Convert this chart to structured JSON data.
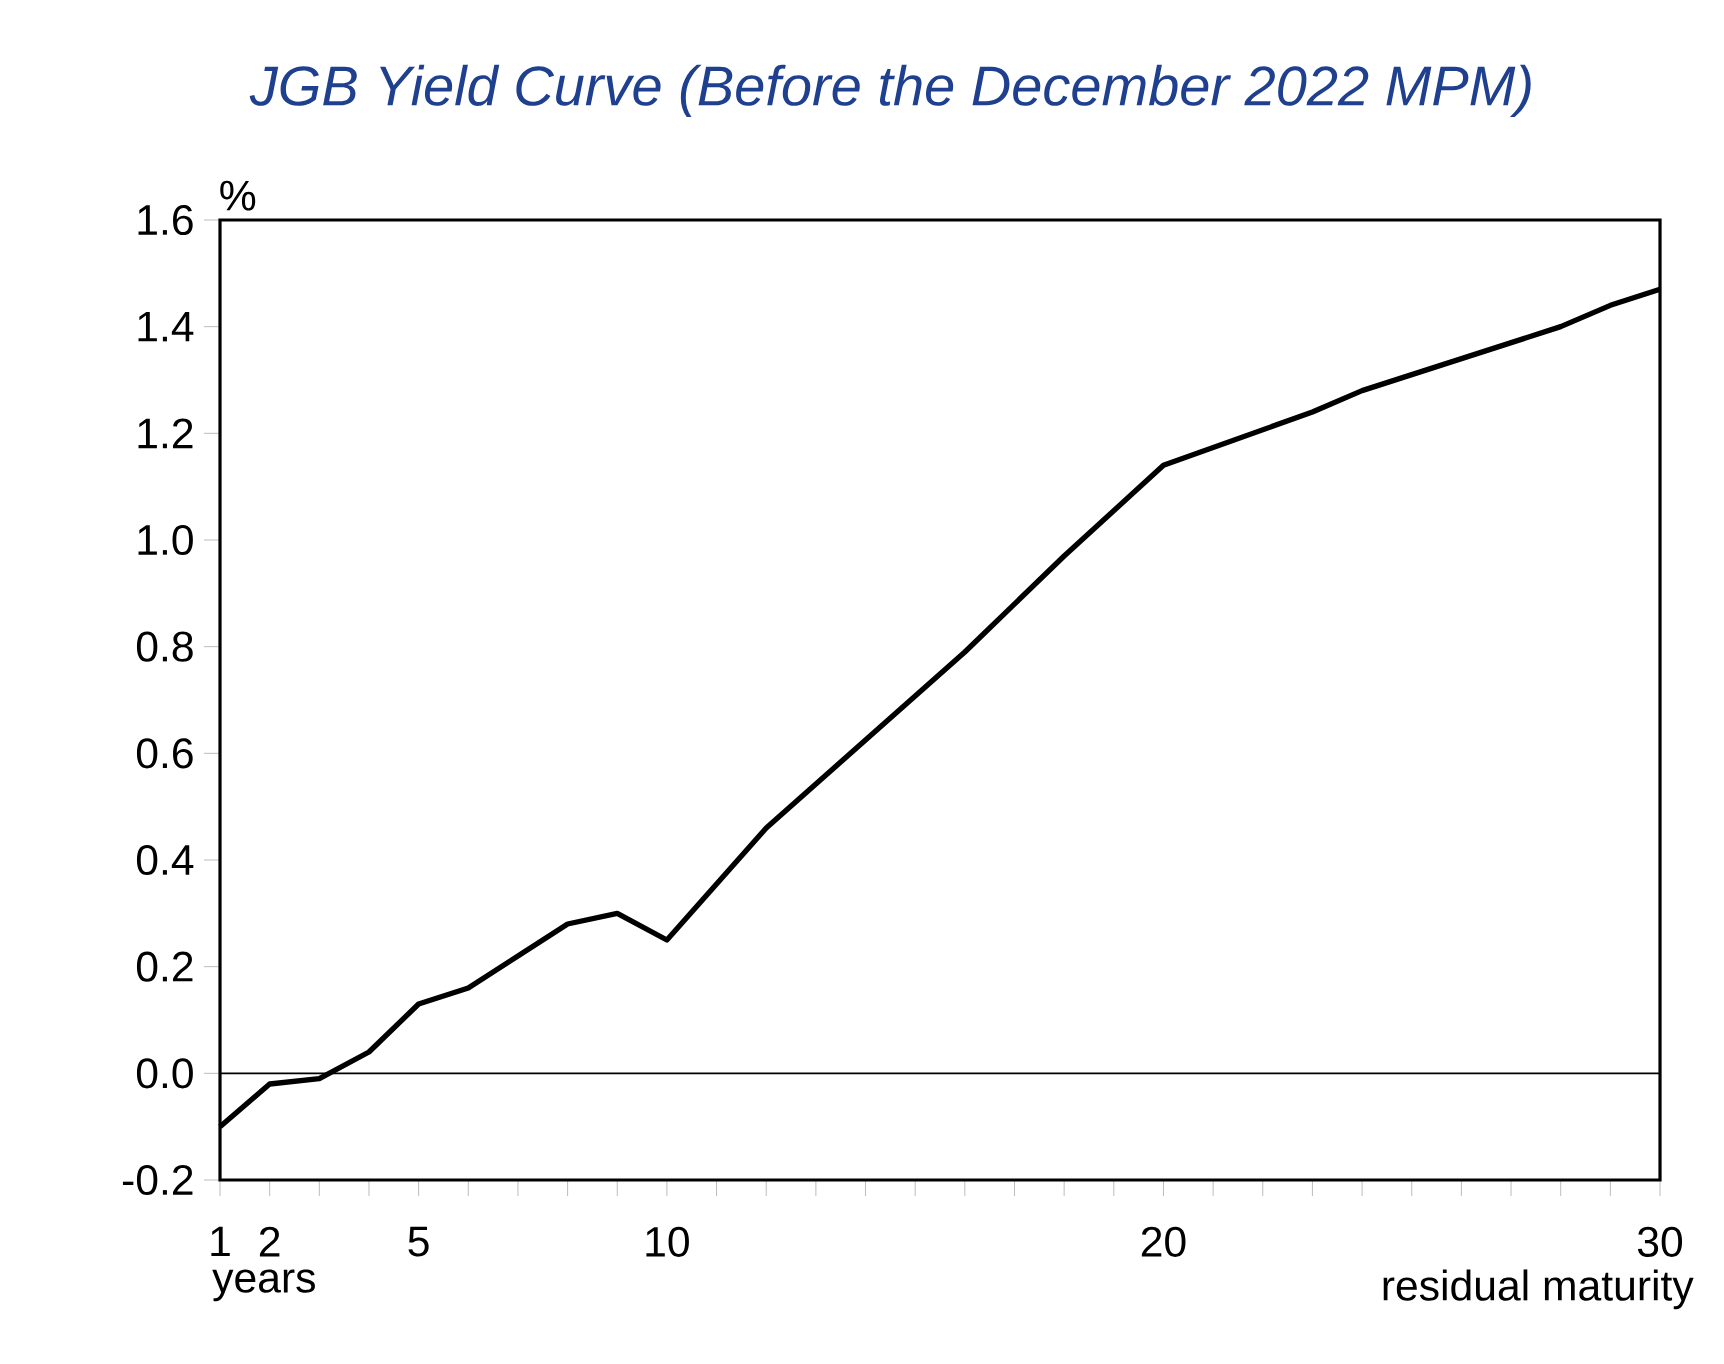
{
  "chart_data": {
    "type": "line",
    "title": "JGB Yield Curve (Before the December 2022 MPM)",
    "xlabel": "residual maturity",
    "ylabel": "%",
    "annotations": [
      "years"
    ],
    "series": [
      {
        "color": "#000000",
        "x": [
          1,
          2,
          3,
          4,
          5,
          6,
          7,
          8,
          9,
          10,
          12,
          16,
          18,
          20,
          23,
          24,
          28,
          29,
          30
        ],
        "values": [
          -0.1,
          -0.02,
          -0.01,
          0.04,
          0.13,
          0.16,
          0.22,
          0.28,
          0.3,
          0.25,
          0.46,
          0.79,
          0.97,
          1.14,
          1.24,
          1.28,
          1.4,
          1.44,
          1.47
        ]
      }
    ],
    "xlim": [
      1,
      30
    ],
    "xticks": [
      1,
      2,
      {
        "value": 3,
        "label": null
      },
      {
        "value": 4,
        "label": null
      },
      5,
      {
        "value": 6,
        "label": null
      },
      {
        "value": 7,
        "label": null
      },
      {
        "value": 8,
        "label": null
      },
      {
        "value": 9,
        "label": null
      },
      10,
      {
        "value": 11,
        "label": null
      },
      {
        "value": 12,
        "label": null
      },
      {
        "value": 13,
        "label": null
      },
      {
        "value": 14,
        "label": null
      },
      {
        "value": 15,
        "label": null
      },
      {
        "value": 16,
        "label": null
      },
      {
        "value": 17,
        "label": null
      },
      {
        "value": 18,
        "label": null
      },
      {
        "value": 19,
        "label": null
      },
      20,
      {
        "value": 21,
        "label": null
      },
      {
        "value": 22,
        "label": null
      },
      {
        "value": 23,
        "label": null
      },
      {
        "value": 24,
        "label": null
      },
      {
        "value": 25,
        "label": null
      },
      {
        "value": 26,
        "label": null
      },
      {
        "value": 27,
        "label": null
      },
      {
        "value": 28,
        "label": null
      },
      {
        "value": 29,
        "label": null
      },
      30
    ],
    "ylim": [
      -0.2,
      1.6
    ],
    "yticks": [
      {
        "value": -0.2,
        "label": "-0.2"
      },
      {
        "value": 0,
        "label": "0.0"
      },
      {
        "value": 0.2,
        "label": "0.2"
      },
      {
        "value": 0.4,
        "label": "0.4"
      },
      {
        "value": 0.6,
        "label": "0.6"
      },
      {
        "value": 0.8,
        "label": "0.8"
      },
      {
        "value": 1.0,
        "label": "1.0"
      },
      {
        "value": 1.2,
        "label": "1.2"
      },
      {
        "value": 1.4,
        "label": "1.4"
      },
      {
        "value": 1.6,
        "label": "1.6"
      }
    ],
    "ref_lines": [
      {
        "axis": "y",
        "value": 0,
        "color": "#000000"
      }
    ],
    "marker": "none",
    "line_style": "solid"
  }
}
